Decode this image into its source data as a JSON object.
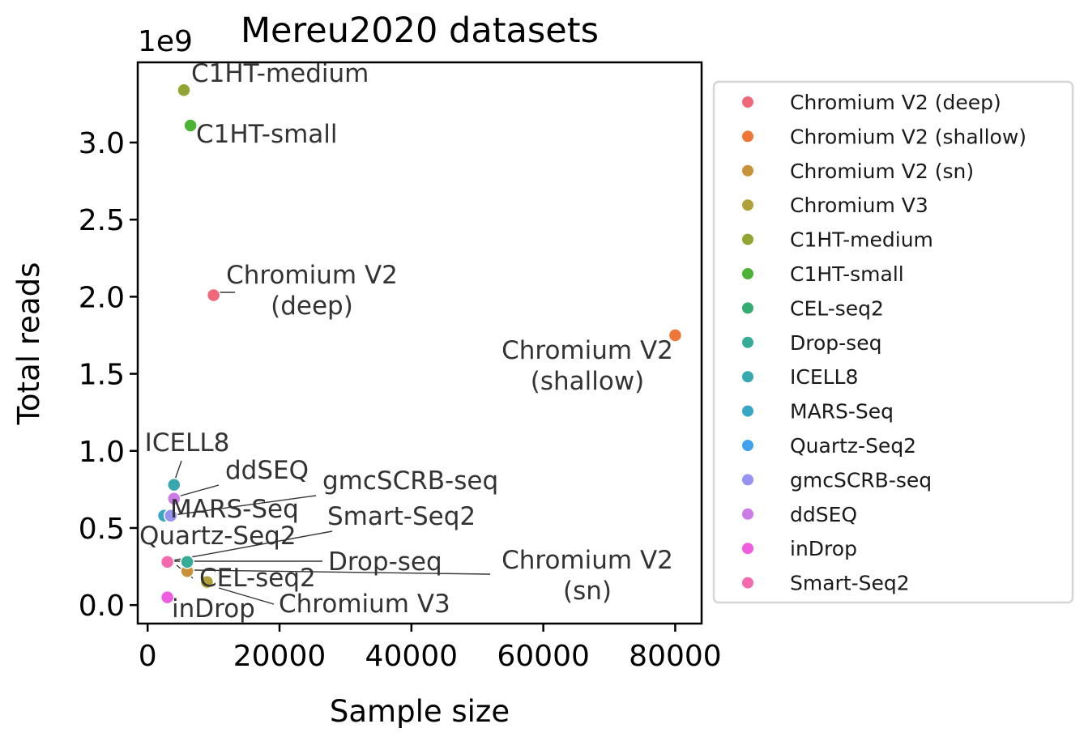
{
  "chart_data": {
    "type": "scatter",
    "title": "Mereu2020 datasets",
    "xlabel": "Sample size",
    "ylabel": "Total reads",
    "y_offset_text": "1e9",
    "xlim": [
      -1500,
      84000
    ],
    "ylim": [
      -0.12,
      3.52
    ],
    "xticks": [
      0,
      20000,
      40000,
      60000,
      80000
    ],
    "xtick_labels": [
      "0",
      "20000",
      "40000",
      "60000",
      "80000"
    ],
    "yticks": [
      0.0,
      0.5,
      1.0,
      1.5,
      2.0,
      2.5,
      3.0
    ],
    "ytick_labels": [
      "0.0",
      "0.5",
      "1.0",
      "1.5",
      "2.0",
      "2.5",
      "3.0"
    ],
    "grid": false,
    "legend_position": "outside-right",
    "points": [
      {
        "name": "Chromium V2 (deep)",
        "x": 10000,
        "y": 2.01,
        "color": "#f0697a"
      },
      {
        "name": "Chromium V2 (shallow)",
        "x": 80000,
        "y": 1.75,
        "color": "#ee7738"
      },
      {
        "name": "Chromium V2 (sn)",
        "x": 6000,
        "y": 0.22,
        "color": "#c8923a"
      },
      {
        "name": "Chromium V3",
        "x": 9000,
        "y": 0.15,
        "color": "#afa03a"
      },
      {
        "name": "C1HT-medium",
        "x": 5500,
        "y": 3.34,
        "color": "#92a534"
      },
      {
        "name": "C1HT-small",
        "x": 6500,
        "y": 3.11,
        "color": "#4db335"
      },
      {
        "name": "CEL-seq2",
        "x": 3000,
        "y": 0.28,
        "color": "#34ad72"
      },
      {
        "name": "Drop-seq",
        "x": 6000,
        "y": 0.28,
        "color": "#36ab98"
      },
      {
        "name": "ICELL8",
        "x": 4000,
        "y": 0.78,
        "color": "#38a8ae"
      },
      {
        "name": "MARS-Seq",
        "x": 2500,
        "y": 0.58,
        "color": "#39a6c6"
      },
      {
        "name": "Quartz-Seq2",
        "x": 3000,
        "y": 0.28,
        "color": "#42a1ee"
      },
      {
        "name": "gmcSCRB-seq",
        "x": 3500,
        "y": 0.58,
        "color": "#9692f2"
      },
      {
        "name": "ddSEQ",
        "x": 4000,
        "y": 0.69,
        "color": "#cc7ae8"
      },
      {
        "name": "inDrop",
        "x": 3000,
        "y": 0.05,
        "color": "#ef5ce0"
      },
      {
        "name": "Smart-Seq2",
        "x": 3000,
        "y": 0.28,
        "color": "#f56aae"
      }
    ],
    "annotations": [
      {
        "lines": [
          "C1HT-medium"
        ],
        "point": 4
      },
      {
        "lines": [
          "C1HT-small"
        ],
        "point": 5
      },
      {
        "lines": [
          "Chromium V2",
          "(deep)"
        ],
        "point": 0
      },
      {
        "lines": [
          "Chromium V2",
          "(shallow)"
        ],
        "point": 1
      },
      {
        "lines": [
          "ICELL8"
        ],
        "point": 8
      },
      {
        "lines": [
          "ddSEQ"
        ],
        "point": 12
      },
      {
        "lines": [
          "gmcSCRB-seq"
        ],
        "point": 11
      },
      {
        "lines": [
          "MARS-Seq"
        ],
        "point": 9
      },
      {
        "lines": [
          "Smart-Seq2"
        ],
        "point": 14
      },
      {
        "lines": [
          "Quartz-Seq2"
        ],
        "point": 10
      },
      {
        "lines": [
          "Drop-seq"
        ],
        "point": 7
      },
      {
        "lines": [
          "Chromium V2",
          "(sn)"
        ],
        "point": 2
      },
      {
        "lines": [
          "CEL-seq2"
        ],
        "point": 6
      },
      {
        "lines": [
          "Chromium V3"
        ],
        "point": 3
      },
      {
        "lines": [
          "inDrop"
        ],
        "point": 13
      }
    ]
  }
}
